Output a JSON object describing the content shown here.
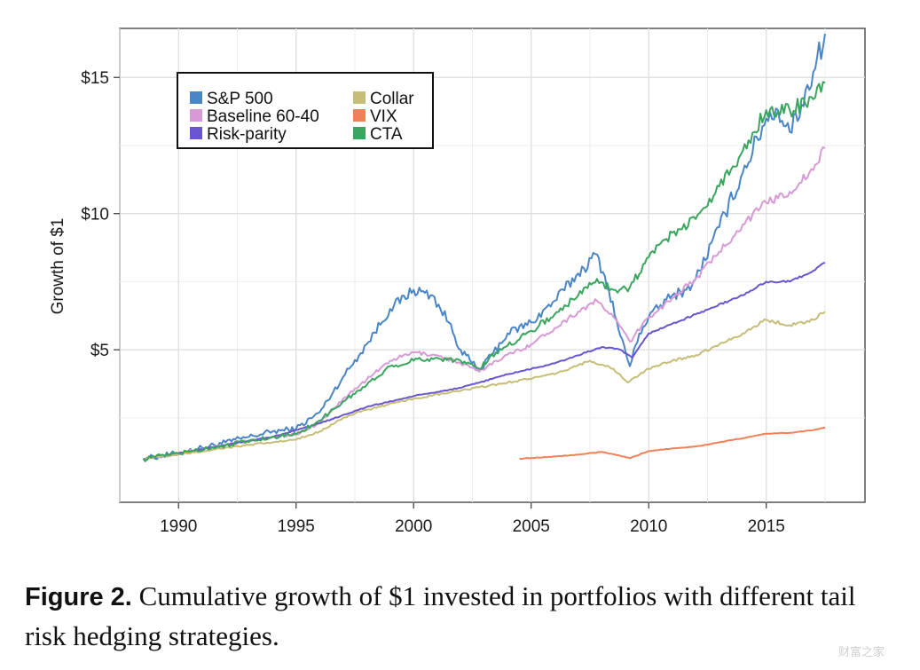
{
  "chart_data": {
    "type": "line",
    "title": "",
    "xlabel": "",
    "ylabel": "Growth of $1",
    "xlim": [
      1987.5,
      2019.2
    ],
    "ylim": [
      -0.6,
      16.8
    ],
    "x_ticks": [
      1990,
      1995,
      2000,
      2005,
      2010,
      2015
    ],
    "x_tick_labels": [
      "1990",
      "1995",
      "2000",
      "2005",
      "2010",
      "2015"
    ],
    "y_ticks": [
      5,
      10,
      15
    ],
    "y_tick_labels": [
      "$5",
      "$10",
      "$15"
    ],
    "grid": true,
    "legend_position": "top-left",
    "series": [
      {
        "name": "S&P 500",
        "color": "#4a86c6",
        "x": [
          1988.5,
          1990,
          1991,
          1992,
          1993,
          1994,
          1995,
          1996,
          1997,
          1998,
          1999,
          2000,
          2000.8,
          2001.5,
          2002,
          2002.8,
          2003.3,
          2004,
          2005,
          2006,
          2007,
          2007.8,
          2008.3,
          2008.8,
          2009.2,
          2009.6,
          2010,
          2011,
          2011.6,
          2012,
          2013,
          2014,
          2015,
          2015.5,
          2016,
          2016.5,
          2017,
          2017.5
        ],
        "y": [
          1.0,
          1.2,
          1.4,
          1.6,
          1.8,
          2.0,
          2.1,
          2.7,
          4.0,
          5.2,
          6.5,
          7.2,
          7.0,
          6.0,
          5.0,
          4.2,
          4.8,
          5.6,
          6.0,
          6.8,
          7.8,
          8.5,
          7.2,
          5.5,
          4.4,
          5.6,
          6.2,
          7.0,
          7.2,
          7.6,
          9.5,
          11.5,
          13.5,
          13.8,
          13.0,
          14.0,
          15.2,
          16.6
        ]
      },
      {
        "name": "Baseline 60-40",
        "color": "#d79ad7",
        "x": [
          1988.5,
          1990,
          1992,
          1994,
          1995,
          1996,
          1997,
          1998,
          1999,
          2000,
          2001,
          2002,
          2002.8,
          2003.5,
          2005,
          2006,
          2007,
          2007.8,
          2008.5,
          2009.2,
          2010,
          2011,
          2012,
          2013,
          2014,
          2015,
          2016,
          2017,
          2017.5
        ],
        "y": [
          1.0,
          1.2,
          1.5,
          1.8,
          1.9,
          2.3,
          3.2,
          3.9,
          4.6,
          4.9,
          4.8,
          4.5,
          4.2,
          4.6,
          5.2,
          5.8,
          6.4,
          6.8,
          6.2,
          5.3,
          6.2,
          6.9,
          7.6,
          8.6,
          9.6,
          10.4,
          10.8,
          11.6,
          12.4
        ]
      },
      {
        "name": "Risk-parity",
        "color": "#6a55cf",
        "x": [
          1988.5,
          1990,
          1992,
          1994,
          1996,
          1998,
          2000,
          2002,
          2004,
          2006,
          2008,
          2008.8,
          2009.3,
          2010,
          2012,
          2014,
          2015,
          2016,
          2017,
          2017.5
        ],
        "y": [
          1.0,
          1.2,
          1.5,
          1.8,
          2.3,
          2.9,
          3.3,
          3.6,
          4.1,
          4.5,
          5.1,
          5.0,
          4.7,
          5.6,
          6.3,
          7.0,
          7.5,
          7.5,
          7.9,
          8.2
        ]
      },
      {
        "name": "Collar",
        "color": "#c6be78",
        "x": [
          1988.5,
          1990,
          1992,
          1994,
          1995,
          1996,
          1997,
          1998,
          2000,
          2002,
          2004,
          2006,
          2007.5,
          2008.5,
          2009.1,
          2010,
          2011,
          2012,
          2013,
          2014,
          2015,
          2016,
          2017,
          2017.5
        ],
        "y": [
          1.0,
          1.15,
          1.4,
          1.6,
          1.7,
          2.0,
          2.5,
          2.8,
          3.2,
          3.5,
          3.8,
          4.1,
          4.6,
          4.3,
          3.8,
          4.3,
          4.6,
          4.8,
          5.2,
          5.6,
          6.1,
          5.9,
          6.1,
          6.4
        ]
      },
      {
        "name": "VIX",
        "color": "#f08058",
        "x": [
          2004.5,
          2006,
          2007,
          2008,
          2008.8,
          2009.2,
          2010,
          2011,
          2012,
          2013,
          2014,
          2015,
          2016,
          2017,
          2017.5
        ],
        "y": [
          1.0,
          1.08,
          1.15,
          1.25,
          1.1,
          1.02,
          1.28,
          1.38,
          1.45,
          1.6,
          1.75,
          1.92,
          1.95,
          2.05,
          2.15
        ]
      },
      {
        "name": "CTA",
        "color": "#3aa55e",
        "x": [
          1988.5,
          1990,
          1992,
          1994,
          1995,
          1996,
          1997,
          1998,
          1999,
          2000,
          2001,
          2002,
          2002.8,
          2003.5,
          2005,
          2006,
          2007,
          2007.8,
          2008.5,
          2009.2,
          2010,
          2011,
          2012,
          2013,
          2014,
          2015,
          2016,
          2017,
          2017.5
        ],
        "y": [
          1.0,
          1.2,
          1.5,
          1.8,
          1.9,
          2.4,
          3.1,
          3.7,
          4.4,
          4.6,
          4.7,
          4.6,
          4.3,
          4.9,
          5.7,
          6.3,
          7.0,
          7.6,
          7.2,
          7.3,
          8.4,
          9.3,
          9.8,
          11.0,
          12.3,
          13.8,
          13.8,
          14.2,
          14.8
        ]
      }
    ]
  },
  "caption": {
    "label": "Figure 2.",
    "text": "Cumulative growth of $1 invested in portfolios with different tail risk hedging strategies."
  },
  "watermark": "财富之家"
}
